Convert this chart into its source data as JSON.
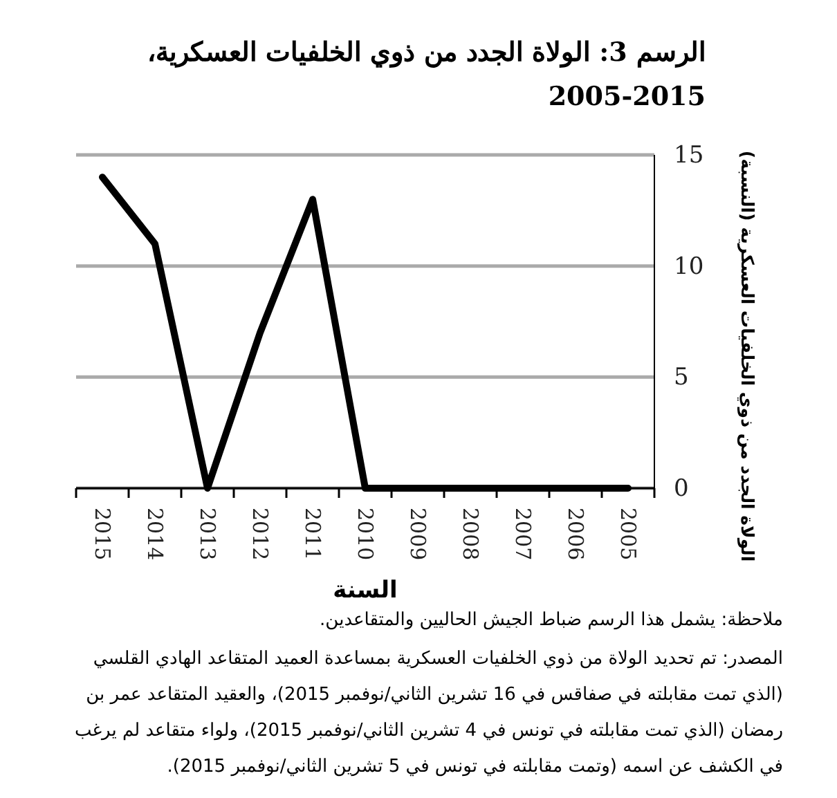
{
  "chart_data": {
    "type": "line",
    "title": "الرسم 3: الولاة الجدد من ذوي الخلفيات العسكرية، 2015-2005",
    "xlabel": "السنة",
    "ylabel": "الولاة الجدد من ذوي الخلفيات العسكرية (النسبة)",
    "categories": [
      "2015",
      "2014",
      "2013",
      "2012",
      "2011",
      "2010",
      "2009",
      "2008",
      "2007",
      "2006",
      "2005"
    ],
    "series": [
      {
        "color": "#000000",
        "values": [
          14,
          11,
          0,
          7,
          13,
          0,
          0,
          0,
          0,
          0,
          0
        ]
      }
    ],
    "ylim": [
      0,
      15
    ],
    "yticks": [
      0,
      5,
      10,
      15
    ],
    "grid": "y",
    "marker": "none",
    "line_style": "solid",
    "annotations": [
      "ملاحظة: يشمل هذا الرسم ضباط الجيش الحاليين والمتقاعدين.",
      "المصدر: تم تحديد الولاة من ذوي الخلفيات العسكرية بمساعدة العميد المتقاعد الهادي القلسي (الذي تمت مقابلته في صفاقس في 16 تشرين الثاني/نوفمبر 2015)، والعقيد المتقاعد عمر بن رمضان (الذي تمت مقابلته في تونس في 4 تشرين الثاني/نوفمبر 2015)، ولواء متقاعد لم يرغب في الكشف عن اسمه (وتمت مقابلته في تونس في 5 تشرين الثاني/نوفمبر 2015)."
    ]
  }
}
